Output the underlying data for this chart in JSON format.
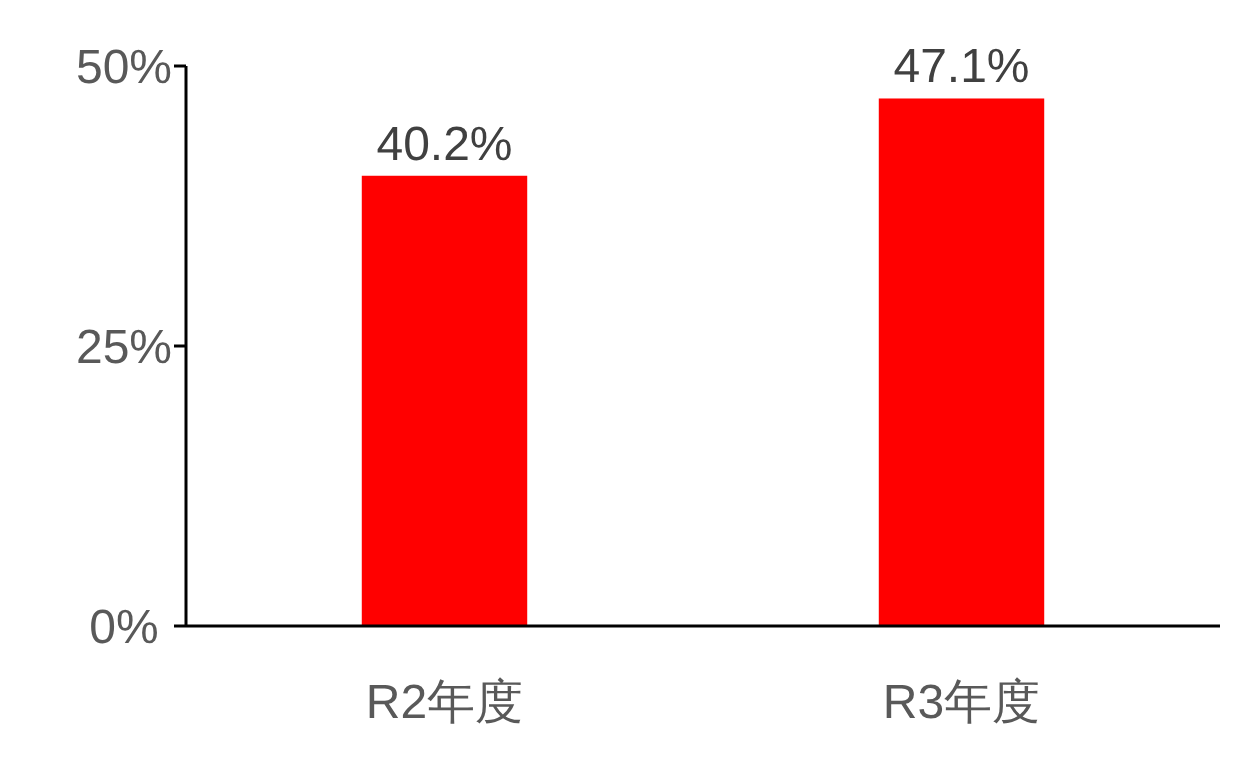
{
  "chart_data": {
    "type": "bar",
    "categories": [
      "R2年度",
      "R3年度"
    ],
    "values": [
      40.2,
      47.1
    ],
    "color": "#ff0000",
    "value_labels": [
      "40.2%",
      "47.1%"
    ],
    "ylim": [
      0,
      50
    ],
    "yticks": [
      {
        "value": 0,
        "label": "0%"
      },
      {
        "value": 25,
        "label": "25%"
      },
      {
        "value": 50,
        "label": "50%"
      }
    ],
    "grid": false
  }
}
